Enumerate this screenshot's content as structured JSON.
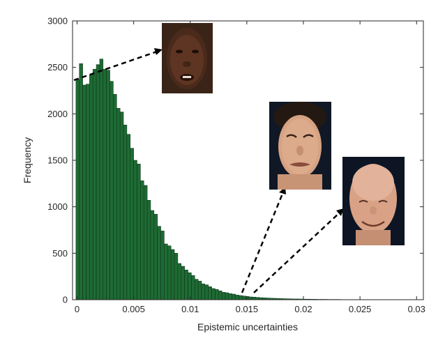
{
  "chart_data": {
    "type": "bar",
    "xlabel": "Epistemic uncertainties",
    "ylabel": "Frequency",
    "xlim": [
      -0.0004,
      0.0306
    ],
    "ylim": [
      0,
      3000
    ],
    "xticks": [
      0,
      0.005,
      0.01,
      0.015,
      0.02,
      0.025,
      0.03
    ],
    "xtick_labels": [
      "0",
      "0.005",
      "0.01",
      "0.015",
      "0.02",
      "0.025",
      "0.03"
    ],
    "yticks": [
      0,
      500,
      1000,
      1500,
      2000,
      2500,
      3000
    ],
    "ytick_labels": [
      "0",
      "500",
      "1000",
      "1500",
      "2000",
      "2500",
      "3000"
    ],
    "bin_start": -0.0001,
    "bin_width": 0.0003,
    "values": [
      2370,
      2540,
      2310,
      2320,
      2420,
      2480,
      2530,
      2590,
      2480,
      2470,
      2350,
      2210,
      2060,
      2020,
      1880,
      1780,
      1630,
      1500,
      1460,
      1280,
      1230,
      1070,
      960,
      920,
      790,
      740,
      600,
      580,
      540,
      500,
      390,
      360,
      320,
      290,
      260,
      220,
      200,
      170,
      160,
      140,
      120,
      110,
      95,
      80,
      75,
      65,
      60,
      50,
      45,
      40,
      35,
      30,
      28,
      25,
      22,
      20,
      18,
      16,
      15,
      14,
      12,
      11,
      10,
      9,
      8,
      8,
      7,
      6,
      6,
      5,
      5,
      4,
      4,
      4,
      3,
      3,
      3,
      3,
      2,
      2,
      2,
      2,
      2,
      2,
      2,
      1,
      1,
      1,
      1,
      1,
      1,
      1,
      1,
      1,
      1,
      1,
      1,
      1,
      1,
      1
    ],
    "bar_color": "#1e6b34",
    "bar_edge_color": "#0d2a15",
    "grid": false,
    "annotations": [
      {
        "image": "face-dark-skinned-woman-neutral",
        "x": 0.0001,
        "y": 2370
      },
      {
        "image": "face-young-man-grimacing",
        "x": 0.0145,
        "y": 80
      },
      {
        "image": "face-bald-man-smiling",
        "x": 0.0155,
        "y": 60
      }
    ]
  }
}
